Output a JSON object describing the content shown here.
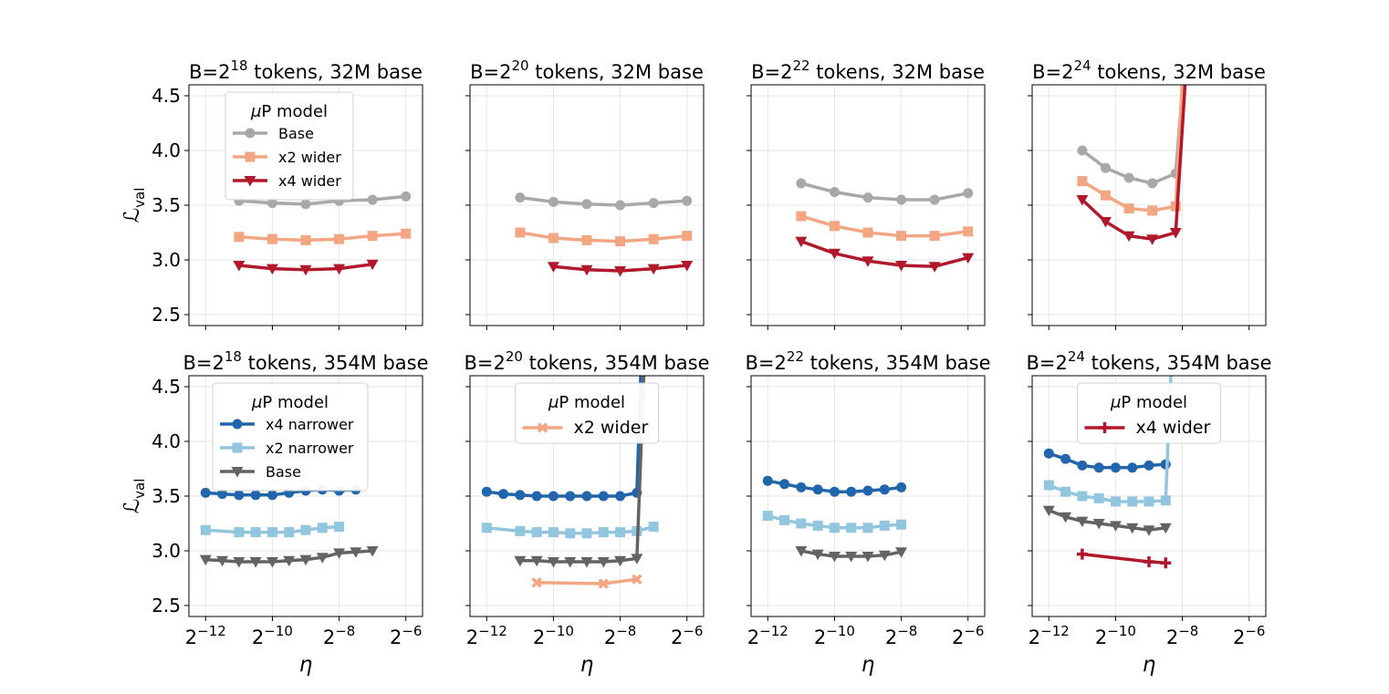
{
  "y_axis_label": "ℒval",
  "x_axis_label": "η",
  "legend_title": "μP model",
  "colors": {
    "base_gray": "#a8a8a8",
    "x2_orange": "#f4a582",
    "x4_red": "#b2182b",
    "x4_narrower_blue": "#2166ac",
    "x2_narrower_lightblue": "#92c5de",
    "base_dark": "#636363",
    "grid": "#e6e6e6"
  },
  "chart_data": [
    {
      "type": "line",
      "title_prefix": "B=2",
      "title_exp": "18",
      "title_suffix": " tokens, 32M base",
      "xlog2": true,
      "xlim": [
        -12.5,
        -5.5
      ],
      "ylim": [
        2.4,
        4.6
      ],
      "xticks": [
        -12,
        -10,
        -8,
        -6
      ],
      "yticks": [
        2.5,
        3.0,
        3.5,
        4.0,
        4.5
      ],
      "show_xticklabels": false,
      "show_yticklabels": true,
      "show_ylabel": true,
      "show_xlabel": false,
      "legend": {
        "position": "upper-left",
        "entries": [
          "Base",
          "x2 wider",
          "x4 wider"
        ]
      },
      "series": [
        {
          "name": "Base",
          "color": "#a8a8a8",
          "marker": "circle",
          "x": [
            -11,
            -10,
            -9,
            -8,
            -7,
            -6
          ],
          "y": [
            3.54,
            3.52,
            3.51,
            3.54,
            3.55,
            3.58
          ]
        },
        {
          "name": "x2 wider",
          "color": "#f4a582",
          "marker": "square",
          "x": [
            -11,
            -10,
            -9,
            -8,
            -7,
            -6
          ],
          "y": [
            3.21,
            3.19,
            3.18,
            3.19,
            3.22,
            3.24
          ]
        },
        {
          "name": "x4 wider",
          "color": "#b2182b",
          "marker": "triangle",
          "x": [
            -11,
            -10,
            -9,
            -8,
            -7
          ],
          "y": [
            2.95,
            2.92,
            2.91,
            2.92,
            2.96
          ]
        }
      ]
    },
    {
      "type": "line",
      "title_prefix": "B=2",
      "title_exp": "20",
      "title_suffix": " tokens, 32M base",
      "xlog2": true,
      "xlim": [
        -12.5,
        -5.5
      ],
      "ylim": [
        2.4,
        4.6
      ],
      "xticks": [
        -12,
        -10,
        -8,
        -6
      ],
      "yticks": [
        2.5,
        3.0,
        3.5,
        4.0,
        4.5
      ],
      "show_xticklabels": false,
      "show_yticklabels": false,
      "show_ylabel": false,
      "show_xlabel": false,
      "series": [
        {
          "name": "Base",
          "color": "#a8a8a8",
          "marker": "circle",
          "x": [
            -11,
            -10,
            -9,
            -8,
            -7,
            -6
          ],
          "y": [
            3.57,
            3.53,
            3.51,
            3.5,
            3.52,
            3.54
          ]
        },
        {
          "name": "x2 wider",
          "color": "#f4a582",
          "marker": "square",
          "x": [
            -11,
            -10,
            -9,
            -8,
            -7,
            -6
          ],
          "y": [
            3.25,
            3.2,
            3.18,
            3.17,
            3.19,
            3.22
          ]
        },
        {
          "name": "x4 wider",
          "color": "#b2182b",
          "marker": "triangle",
          "x": [
            -10,
            -9,
            -8,
            -7,
            -6
          ],
          "y": [
            2.94,
            2.91,
            2.9,
            2.92,
            2.95
          ]
        }
      ]
    },
    {
      "type": "line",
      "title_prefix": "B=2",
      "title_exp": "22",
      "title_suffix": " tokens, 32M base",
      "xlog2": true,
      "xlim": [
        -12.5,
        -5.5
      ],
      "ylim": [
        2.4,
        4.6
      ],
      "xticks": [
        -12,
        -10,
        -8,
        -6
      ],
      "yticks": [
        2.5,
        3.0,
        3.5,
        4.0,
        4.5
      ],
      "show_xticklabels": false,
      "show_yticklabels": false,
      "show_ylabel": false,
      "show_xlabel": false,
      "series": [
        {
          "name": "Base",
          "color": "#a8a8a8",
          "marker": "circle",
          "x": [
            -11,
            -10,
            -9,
            -8,
            -7,
            -6
          ],
          "y": [
            3.7,
            3.62,
            3.57,
            3.55,
            3.55,
            3.61
          ]
        },
        {
          "name": "x2 wider",
          "color": "#f4a582",
          "marker": "square",
          "x": [
            -11,
            -10,
            -9,
            -8,
            -7,
            -6
          ],
          "y": [
            3.4,
            3.31,
            3.25,
            3.22,
            3.22,
            3.26
          ]
        },
        {
          "name": "x4 wider",
          "color": "#b2182b",
          "marker": "triangle",
          "x": [
            -11,
            -10,
            -9,
            -8,
            -7,
            -6
          ],
          "y": [
            3.17,
            3.06,
            2.99,
            2.95,
            2.94,
            3.02
          ]
        }
      ]
    },
    {
      "type": "line",
      "title_prefix": "B=2",
      "title_exp": "24",
      "title_suffix": " tokens, 32M base",
      "xlog2": true,
      "xlim": [
        -12.5,
        -5.5
      ],
      "ylim": [
        2.4,
        4.6
      ],
      "xticks": [
        -12,
        -10,
        -8,
        -6
      ],
      "yticks": [
        2.5,
        3.0,
        3.5,
        4.0,
        4.5
      ],
      "show_xticklabels": false,
      "show_yticklabels": false,
      "show_ylabel": false,
      "show_xlabel": false,
      "series": [
        {
          "name": "Base",
          "color": "#a8a8a8",
          "marker": "circle",
          "x": [
            -11,
            -10.3,
            -9.6,
            -8.9,
            -8.2
          ],
          "y": [
            4.0,
            3.84,
            3.75,
            3.7,
            3.79
          ],
          "diverge_x": -7.9
        },
        {
          "name": "x2 wider",
          "color": "#f4a582",
          "marker": "square",
          "x": [
            -11,
            -10.3,
            -9.6,
            -8.9,
            -8.2
          ],
          "y": [
            3.72,
            3.59,
            3.47,
            3.45,
            3.49
          ],
          "diverge_x": -7.95
        },
        {
          "name": "x4 wider",
          "color": "#b2182b",
          "marker": "triangle",
          "x": [
            -11,
            -10.3,
            -9.6,
            -8.9,
            -8.2
          ],
          "y": [
            3.55,
            3.35,
            3.22,
            3.19,
            3.25
          ],
          "diverge_x": -7.85
        }
      ]
    },
    {
      "type": "line",
      "title_prefix": "B=2",
      "title_exp": "18",
      "title_suffix": " tokens, 354M base",
      "xlog2": true,
      "xlim": [
        -12.5,
        -5.5
      ],
      "ylim": [
        2.4,
        4.6
      ],
      "xticks": [
        -12,
        -10,
        -8,
        -6
      ],
      "yticks": [
        2.5,
        3.0,
        3.5,
        4.0,
        4.5
      ],
      "show_xticklabels": true,
      "show_yticklabels": true,
      "show_ylabel": true,
      "show_xlabel": true,
      "legend": {
        "position": "upper-left",
        "entries": [
          "x4 narrower",
          "x2 narrower",
          "Base"
        ]
      },
      "series": [
        {
          "name": "x4 narrower",
          "color": "#2166ac",
          "marker": "circle",
          "x": [
            -12,
            -11.5,
            -11,
            -10.5,
            -10,
            -9.5,
            -9,
            -8.5,
            -8,
            -7.5
          ],
          "y": [
            3.53,
            3.52,
            3.51,
            3.51,
            3.51,
            3.53,
            3.55,
            3.56,
            3.55,
            3.56
          ]
        },
        {
          "name": "x2 narrower",
          "color": "#92c5de",
          "marker": "square",
          "x": [
            -12,
            -11,
            -10.5,
            -10,
            -9.5,
            -9,
            -8.5,
            -8
          ],
          "y": [
            3.19,
            3.17,
            3.17,
            3.17,
            3.17,
            3.19,
            3.21,
            3.22
          ]
        },
        {
          "name": "Base",
          "color": "#636363",
          "marker": "triangle",
          "x": [
            -12,
            -11.5,
            -11,
            -10.5,
            -10,
            -9.5,
            -9,
            -8.5,
            -8,
            -7.5,
            -7
          ],
          "y": [
            2.92,
            2.91,
            2.9,
            2.9,
            2.9,
            2.91,
            2.92,
            2.94,
            2.98,
            2.99,
            3.0
          ]
        }
      ]
    },
    {
      "type": "line",
      "title_prefix": "B=2",
      "title_exp": "20",
      "title_suffix": " tokens, 354M base",
      "xlog2": true,
      "xlim": [
        -12.5,
        -5.5
      ],
      "ylim": [
        2.4,
        4.6
      ],
      "xticks": [
        -12,
        -10,
        -8,
        -6
      ],
      "yticks": [
        2.5,
        3.0,
        3.5,
        4.0,
        4.5
      ],
      "show_xticklabels": true,
      "show_yticklabels": false,
      "show_ylabel": false,
      "show_xlabel": true,
      "legend": {
        "position": "upper-center",
        "entries": [
          "x2 wider"
        ]
      },
      "series": [
        {
          "name": "x4 narrower",
          "color": "#2166ac",
          "marker": "circle",
          "x": [
            -12,
            -11.5,
            -11,
            -10.5,
            -10,
            -9.5,
            -9,
            -8.5,
            -8,
            -7.5
          ],
          "y": [
            3.54,
            3.52,
            3.51,
            3.5,
            3.5,
            3.5,
            3.5,
            3.5,
            3.5,
            3.53
          ],
          "diverge_x": -7.35
        },
        {
          "name": "x2 narrower",
          "color": "#92c5de",
          "marker": "square",
          "x": [
            -12,
            -11,
            -10.5,
            -10,
            -9.5,
            -9,
            -8.5,
            -8,
            -7.5,
            -7
          ],
          "y": [
            3.21,
            3.18,
            3.17,
            3.17,
            3.16,
            3.16,
            3.17,
            3.17,
            3.18,
            3.22
          ]
        },
        {
          "name": "Base",
          "color": "#636363",
          "marker": "triangle",
          "x": [
            -11,
            -10.5,
            -10,
            -9.5,
            -9,
            -8.5,
            -8,
            -7.5
          ],
          "y": [
            2.91,
            2.91,
            2.9,
            2.9,
            2.9,
            2.9,
            2.91,
            2.93
          ],
          "diverge_x": -7.25
        },
        {
          "name": "x2 wider",
          "color": "#f4a582",
          "marker": "x",
          "x": [
            -10.5,
            -8.5,
            -7.5
          ],
          "y": [
            2.71,
            2.7,
            2.74
          ]
        }
      ]
    },
    {
      "type": "line",
      "title_prefix": "B=2",
      "title_exp": "22",
      "title_suffix": " tokens, 354M base",
      "xlog2": true,
      "xlim": [
        -12.5,
        -5.5
      ],
      "ylim": [
        2.4,
        4.6
      ],
      "xticks": [
        -12,
        -10,
        -8,
        -6
      ],
      "yticks": [
        2.5,
        3.0,
        3.5,
        4.0,
        4.5
      ],
      "show_xticklabels": true,
      "show_yticklabels": false,
      "show_ylabel": false,
      "show_xlabel": true,
      "series": [
        {
          "name": "x4 narrower",
          "color": "#2166ac",
          "marker": "circle",
          "x": [
            -12,
            -11.5,
            -11,
            -10.5,
            -10,
            -9.5,
            -9,
            -8.5,
            -8
          ],
          "y": [
            3.64,
            3.61,
            3.58,
            3.56,
            3.54,
            3.54,
            3.55,
            3.56,
            3.58
          ]
        },
        {
          "name": "x2 narrower",
          "color": "#92c5de",
          "marker": "square",
          "x": [
            -12,
            -11.5,
            -11,
            -10.5,
            -10,
            -9.5,
            -9,
            -8.5,
            -8
          ],
          "y": [
            3.32,
            3.28,
            3.25,
            3.23,
            3.21,
            3.21,
            3.21,
            3.23,
            3.24
          ]
        },
        {
          "name": "Base",
          "color": "#636363",
          "marker": "triangle",
          "x": [
            -11,
            -10.5,
            -10,
            -9.5,
            -9,
            -8.5,
            -8
          ],
          "y": [
            3.0,
            2.97,
            2.95,
            2.95,
            2.95,
            2.96,
            2.99
          ]
        }
      ]
    },
    {
      "type": "line",
      "title_prefix": "B=2",
      "title_exp": "24",
      "title_suffix": " tokens, 354M base",
      "xlog2": true,
      "xlim": [
        -12.5,
        -5.5
      ],
      "ylim": [
        2.4,
        4.6
      ],
      "xticks": [
        -12,
        -10,
        -8,
        -6
      ],
      "yticks": [
        2.5,
        3.0,
        3.5,
        4.0,
        4.5
      ],
      "show_xticklabels": true,
      "show_yticklabels": false,
      "show_ylabel": false,
      "show_xlabel": true,
      "legend": {
        "position": "upper-center",
        "entries": [
          "x4 wider"
        ]
      },
      "series": [
        {
          "name": "x4 narrower",
          "color": "#2166ac",
          "marker": "circle",
          "x": [
            -12,
            -11.5,
            -11,
            -10.5,
            -10,
            -9.5,
            -9,
            -8.5
          ],
          "y": [
            3.89,
            3.84,
            3.78,
            3.76,
            3.76,
            3.76,
            3.78,
            3.79
          ]
        },
        {
          "name": "x2 narrower",
          "color": "#92c5de",
          "marker": "square",
          "x": [
            -12,
            -11.5,
            -11,
            -10.5,
            -10,
            -9.5,
            -9,
            -8.5
          ],
          "y": [
            3.6,
            3.54,
            3.5,
            3.48,
            3.45,
            3.45,
            3.45,
            3.46
          ],
          "diverge_x": -8.3
        },
        {
          "name": "Base",
          "color": "#636363",
          "marker": "triangle",
          "x": [
            -12,
            -11.5,
            -11,
            -10.5,
            -10,
            -9.5,
            -9,
            -8.5
          ],
          "y": [
            3.37,
            3.31,
            3.27,
            3.25,
            3.23,
            3.21,
            3.19,
            3.21
          ]
        },
        {
          "name": "x4 wider",
          "color": "#b2182b",
          "marker": "plus",
          "x": [
            -11,
            -9,
            -8.5
          ],
          "y": [
            2.97,
            2.9,
            2.89
          ]
        }
      ]
    }
  ]
}
